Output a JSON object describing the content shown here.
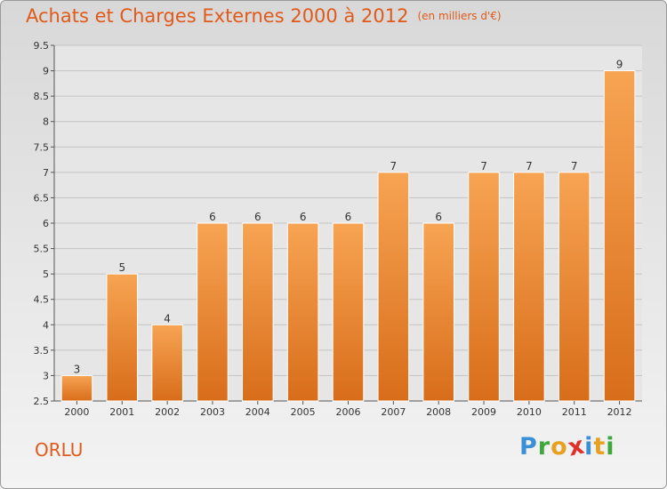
{
  "header": {
    "title": "Achats et Charges Externes 2000 à 2012",
    "unit": "(en milliers d'€)"
  },
  "footer": {
    "place": "ORLU",
    "logo_letters": [
      "P",
      "r",
      "o",
      "x",
      "i",
      "t",
      "i"
    ],
    "logo_colors": [
      "#3b8fd6",
      "#3fa83a",
      "#e8a020",
      "#e0302a",
      "#3b8fd6",
      "#e8a020",
      "#3fa83a"
    ]
  },
  "chart_data": {
    "type": "bar",
    "categories": [
      "2000",
      "2001",
      "2002",
      "2003",
      "2004",
      "2005",
      "2006",
      "2007",
      "2008",
      "2009",
      "2010",
      "2011",
      "2012"
    ],
    "values": [
      3,
      5,
      4,
      6,
      6,
      6,
      6,
      7,
      6,
      7,
      7,
      7,
      9
    ],
    "data_labels": [
      "3",
      "5",
      "4",
      "6",
      "6",
      "6",
      "6",
      "7",
      "6",
      "7",
      "7",
      "7",
      "9"
    ],
    "ylim": [
      2.5,
      9.5
    ],
    "yticks": [
      2.5,
      3,
      3.5,
      4,
      4.5,
      5,
      5.5,
      6,
      6.5,
      7,
      7.5,
      8,
      8.5,
      9,
      9.5
    ],
    "ytick_labels": [
      "2.5",
      "3",
      "3.5",
      "4",
      "4.5",
      "5",
      "5.5",
      "6",
      "6.5",
      "7",
      "7.5",
      "8",
      "8.5",
      "9",
      "9.5"
    ],
    "grid": true,
    "bar_color": "#f0882a"
  }
}
